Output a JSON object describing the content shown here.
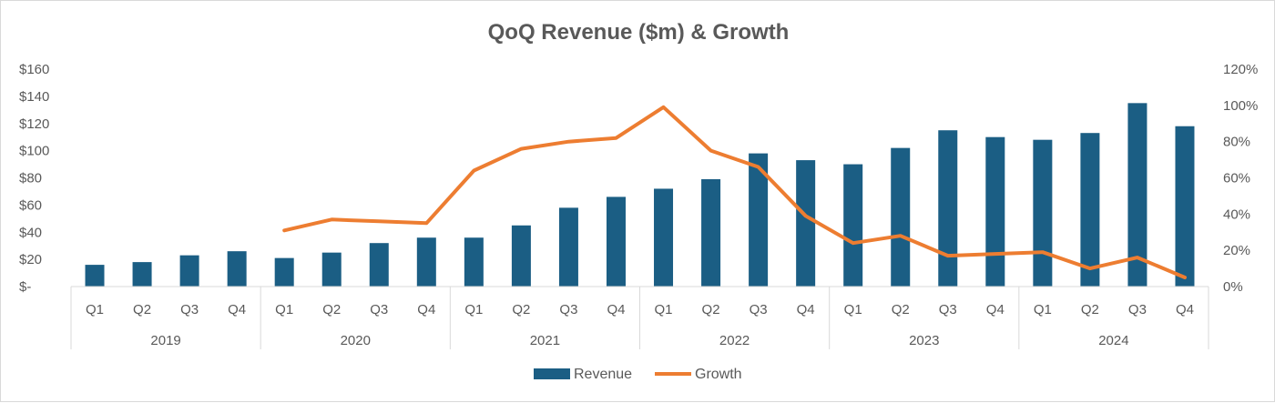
{
  "chart_data": {
    "type": "bar",
    "title": "QoQ Revenue ($m) & Growth",
    "quarters": [
      "Q1",
      "Q2",
      "Q3",
      "Q4",
      "Q1",
      "Q2",
      "Q3",
      "Q4",
      "Q1",
      "Q2",
      "Q3",
      "Q4",
      "Q1",
      "Q2",
      "Q3",
      "Q4",
      "Q1",
      "Q2",
      "Q3",
      "Q4",
      "Q1",
      "Q2",
      "Q3",
      "Q4"
    ],
    "years": [
      "2019",
      "2020",
      "2021",
      "2022",
      "2023",
      "2024"
    ],
    "series": [
      {
        "name": "Revenue",
        "type": "bar",
        "axis": "left",
        "color": "#1b5e84",
        "values": [
          16,
          18,
          23,
          26,
          21,
          25,
          32,
          36,
          36,
          45,
          58,
          66,
          72,
          79,
          98,
          93,
          90,
          102,
          115,
          110,
          108,
          113,
          135,
          118
        ]
      },
      {
        "name": "Growth",
        "type": "line",
        "axis": "right",
        "color": "#ed7d31",
        "values": [
          null,
          null,
          null,
          null,
          0.31,
          0.37,
          0.36,
          0.35,
          0.64,
          0.76,
          0.8,
          0.82,
          0.99,
          0.75,
          0.66,
          0.39,
          0.24,
          0.28,
          0.17,
          0.18,
          0.19,
          0.1,
          0.16,
          0.05
        ]
      }
    ],
    "y_left": {
      "min": 0,
      "max": 160,
      "step": 20,
      "labels": [
        "$-",
        "$20",
        "$40",
        "$60",
        "$80",
        "$100",
        "$120",
        "$140",
        "$160"
      ]
    },
    "y_right": {
      "min": 0,
      "max": 1.2,
      "step": 0.2,
      "labels": [
        "0%",
        "20%",
        "40%",
        "60%",
        "80%",
        "100%",
        "120%"
      ]
    },
    "legend_position": "bottom",
    "grid": false
  }
}
